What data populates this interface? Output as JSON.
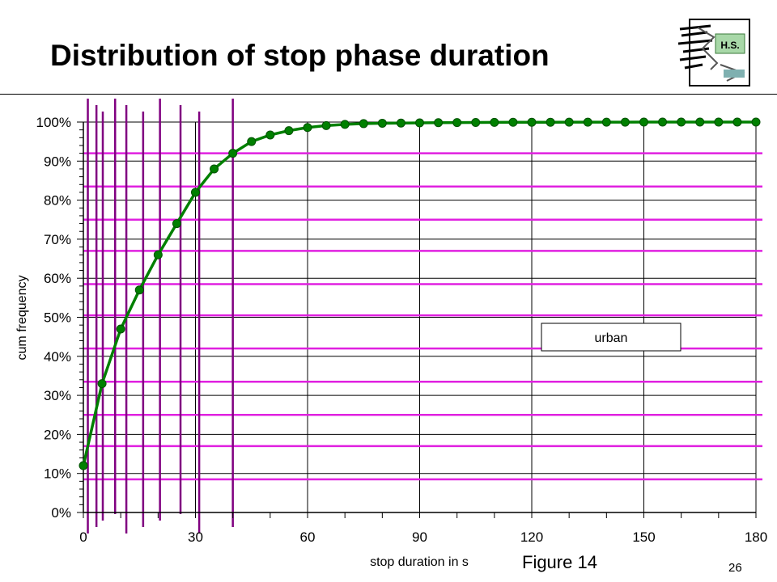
{
  "slide": {
    "title": "Distribution of stop phase duration",
    "logo_text": "H.S.",
    "figure_label": "Figure 14",
    "page_number": "26"
  },
  "chart_data": {
    "type": "line",
    "title": "",
    "xlabel": "stop duration in s",
    "ylabel": "cum frequency",
    "xlim": [
      0,
      180
    ],
    "ylim": [
      0,
      100
    ],
    "x_ticks": [
      0,
      30,
      60,
      90,
      120,
      150,
      180
    ],
    "y_ticks": [
      "0%",
      "10%",
      "20%",
      "30%",
      "40%",
      "50%",
      "60%",
      "70%",
      "80%",
      "90%",
      "100%"
    ],
    "grid": true,
    "legend": {
      "entries": [
        "urban"
      ],
      "position": "center-right"
    },
    "series": [
      {
        "name": "urban",
        "color": "#008000",
        "x": [
          0,
          5,
          10,
          15,
          20,
          25,
          30,
          35,
          40,
          45,
          50,
          55,
          60,
          65,
          70,
          75,
          80,
          85,
          90,
          95,
          100,
          105,
          110,
          115,
          120,
          125,
          130,
          135,
          140,
          145,
          150,
          155,
          160,
          165,
          170,
          175,
          180
        ],
        "y": [
          12,
          33,
          47,
          57,
          66,
          74,
          82,
          88,
          92,
          95,
          96.7,
          97.8,
          98.6,
          99.1,
          99.4,
          99.6,
          99.7,
          99.75,
          99.8,
          99.85,
          99.88,
          99.9,
          99.92,
          99.94,
          99.95,
          99.96,
          99.97,
          99.97,
          99.98,
          99.98,
          99.99,
          99.99,
          99.99,
          100,
          100,
          100,
          100
        ]
      }
    ],
    "annotation_lines": {
      "horizontal_color": "#e020e0",
      "horizontal_y": [
        8.5,
        17,
        25,
        33.5,
        42,
        50.5,
        58.5,
        67,
        75,
        83.5,
        92
      ],
      "vertical_color": "#800080",
      "vertical_x": [
        1.2,
        3.5,
        5.2,
        8.5,
        11.5,
        16,
        20.5,
        26,
        31,
        40
      ]
    }
  }
}
